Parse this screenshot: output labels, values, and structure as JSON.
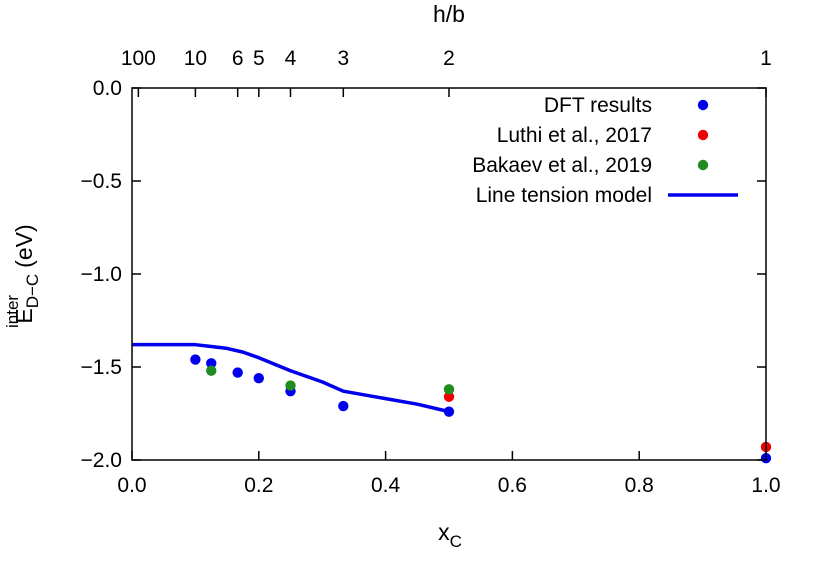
{
  "chart_data": {
    "type": "scatter",
    "xlabel": "x",
    "xlabel_sub": "C",
    "ylabel": "E",
    "ylabel_sup": "inter",
    "ylabel_sub": "D−C",
    "ylabel_unit": "(eV)",
    "top_xlabel": "h/b",
    "xlim": [
      0,
      1
    ],
    "ylim": [
      -2,
      0
    ],
    "x_ticks": [
      {
        "value": 0.0,
        "label": "0.0"
      },
      {
        "value": 0.2,
        "label": "0.2"
      },
      {
        "value": 0.4,
        "label": "0.4"
      },
      {
        "value": 0.6,
        "label": "0.6"
      },
      {
        "value": 0.8,
        "label": "0.8"
      },
      {
        "value": 1.0,
        "label": "1.0"
      }
    ],
    "y_ticks": [
      {
        "value": 0.0,
        "label": "0.0"
      },
      {
        "value": -0.5,
        "label": "−0.5"
      },
      {
        "value": -1.0,
        "label": "−1.0"
      },
      {
        "value": -1.5,
        "label": "−1.5"
      },
      {
        "value": -2.0,
        "label": "−2.0"
      }
    ],
    "top_ticks": [
      {
        "value": 0.01,
        "label": "100"
      },
      {
        "value": 0.1,
        "label": "10"
      },
      {
        "value": 0.1667,
        "label": "6"
      },
      {
        "value": 0.2,
        "label": "5"
      },
      {
        "value": 0.25,
        "label": "4"
      },
      {
        "value": 0.3333,
        "label": "3"
      },
      {
        "value": 0.5,
        "label": "2"
      },
      {
        "value": 1.0,
        "label": "1"
      }
    ],
    "legend_position": "top-right",
    "series": [
      {
        "name": "DFT results",
        "kind": "points",
        "color": "#0000ee",
        "x": [
          0.1,
          0.125,
          0.1667,
          0.2,
          0.25,
          0.3333,
          0.5,
          1.0
        ],
        "y": [
          -1.46,
          -1.48,
          -1.53,
          -1.56,
          -1.63,
          -1.71,
          -1.74,
          -1.99
        ]
      },
      {
        "name": "Luthi et al., 2017",
        "kind": "points",
        "color": "#ee0000",
        "x": [
          0.5,
          1.0
        ],
        "y": [
          -1.66,
          -1.93
        ]
      },
      {
        "name": "Bakaev et al., 2019",
        "kind": "points",
        "color": "#228b22",
        "x": [
          0.125,
          0.25,
          0.5
        ],
        "y": [
          -1.52,
          -1.6,
          -1.62
        ]
      },
      {
        "name": "Line tension model",
        "kind": "line",
        "color": "#0000ee",
        "x": [
          0.0,
          0.05,
          0.1,
          0.125,
          0.15,
          0.175,
          0.2,
          0.25,
          0.3,
          0.3333,
          0.4,
          0.45,
          0.5
        ],
        "y": [
          -1.38,
          -1.38,
          -1.38,
          -1.39,
          -1.4,
          -1.42,
          -1.45,
          -1.52,
          -1.58,
          -1.63,
          -1.67,
          -1.7,
          -1.74
        ]
      }
    ]
  }
}
